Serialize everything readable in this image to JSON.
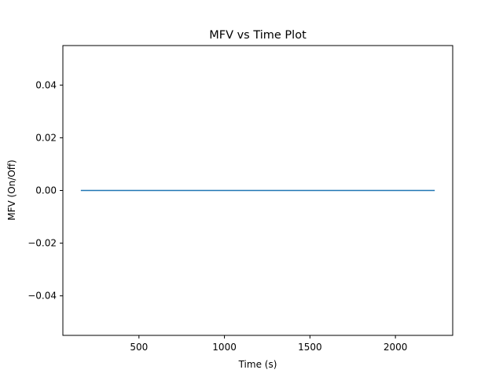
{
  "chart_data": {
    "type": "line",
    "title": "MFV vs Time Plot",
    "xlabel": "Time (s)",
    "ylabel": "MFV (On/Off)",
    "xlim": [
      55,
      2335
    ],
    "ylim": [
      -0.055,
      0.055
    ],
    "x_ticks": [
      500,
      1000,
      1500,
      2000
    ],
    "y_ticks": [
      -0.04,
      -0.02,
      0.0,
      0.02,
      0.04
    ],
    "x_tick_labels": [
      "500",
      "1000",
      "1500",
      "2000"
    ],
    "y_tick_labels": [
      "−0.04",
      "−0.02",
      "0.00",
      "0.02",
      "0.04"
    ],
    "grid": false,
    "series": [
      {
        "color": "#1f77b4",
        "x": [
          160,
          2230
        ],
        "y": [
          0,
          0
        ]
      }
    ]
  }
}
